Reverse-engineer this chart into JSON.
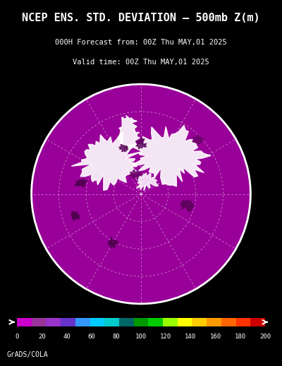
{
  "title_line1": "NCEP ENS. STD. DEVIATION – 500mb Z(m)",
  "title_line2": "000H Forecast from: 00Z Thu MAY,01 2025",
  "title_line3": "Valid time: 00Z Thu MAY,01 2025",
  "background_color": "#000000",
  "map_bg_color": "#990099",
  "colorbar_colors": [
    "#cc00cc",
    "#993399",
    "#9933cc",
    "#6633cc",
    "#3399ff",
    "#00ccff",
    "#00cccc",
    "#006666",
    "#009900",
    "#00cc00",
    "#99ff00",
    "#ffff00",
    "#ffcc00",
    "#ff9900",
    "#ff6600",
    "#ff3300",
    "#cc0000"
  ],
  "colorbar_ticks": [
    0,
    20,
    40,
    60,
    80,
    100,
    120,
    140,
    160,
    180,
    200
  ],
  "credit_text": "GrADS/COLA",
  "credit_fontsize": 7
}
